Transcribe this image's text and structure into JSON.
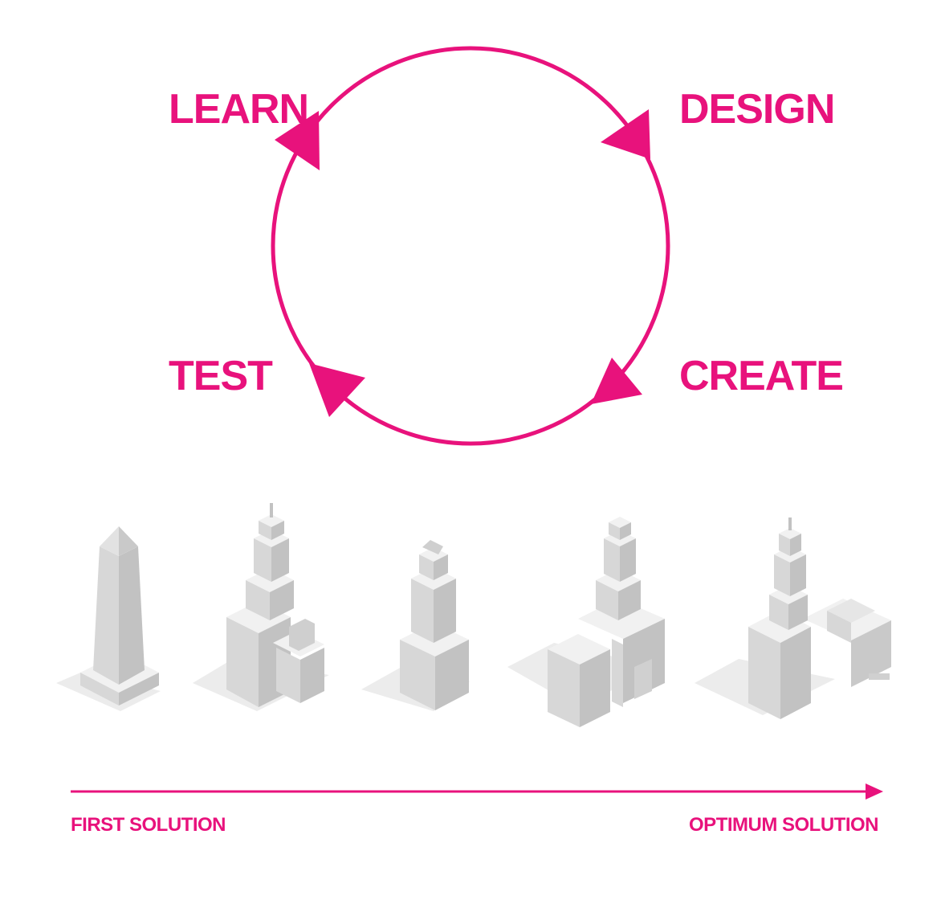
{
  "cycle": {
    "stages": [
      {
        "key": "learn",
        "label": "LEARN"
      },
      {
        "key": "design",
        "label": "DESIGN"
      },
      {
        "key": "create",
        "label": "CREATE"
      },
      {
        "key": "test",
        "label": "TEST"
      }
    ]
  },
  "progression": {
    "start_label": "FIRST SOLUTION",
    "end_label": "OPTIMUM SOLUTION",
    "building_count": 5
  },
  "colors": {
    "accent": "#e8127c",
    "building_light": "#f1f1f1",
    "building_left": "#d7d7d7",
    "building_right": "#c2c2c2",
    "shadow": "#ececec"
  }
}
